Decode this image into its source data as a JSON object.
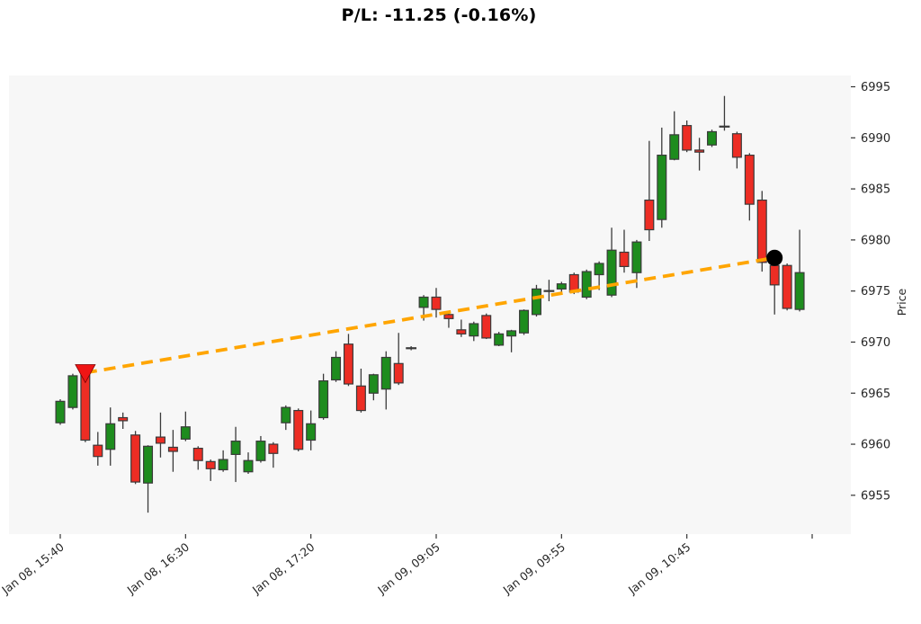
{
  "title": "P/L: -11.25 (-0.16%)",
  "chart_data": {
    "type": "candlestick",
    "title": "P/L: -11.25 (-0.16%)",
    "ylabel": "Price",
    "xlabel": "",
    "grid": false,
    "ylim": [
      6951.2,
      6996.1
    ],
    "y_ticks": [
      6955,
      6960,
      6965,
      6970,
      6975,
      6980,
      6985,
      6990,
      6995
    ],
    "x_ticks": [
      {
        "index": 0,
        "label": "Jan 08, 15:40"
      },
      {
        "index": 10,
        "label": "Jan 08, 16:30"
      },
      {
        "index": 20,
        "label": "Jan 08, 17:20"
      },
      {
        "index": 30,
        "label": "Jan 09, 09:05"
      },
      {
        "index": 40,
        "label": "Jan 09, 09:55"
      },
      {
        "index": 50,
        "label": "Jan 09, 10:45"
      },
      {
        "index": 60,
        "label": ""
      }
    ],
    "candles_format": [
      "open",
      "high",
      "low",
      "close"
    ],
    "candles": [
      [
        6962.1,
        6964.4,
        6961.9,
        6964.2
      ],
      [
        6963.6,
        6966.9,
        6963.4,
        6966.7
      ],
      [
        6967.0,
        6967.2,
        6960.2,
        6960.4
      ],
      [
        6959.9,
        6961.2,
        6957.9,
        6958.8
      ],
      [
        6959.5,
        6963.6,
        6957.9,
        6962.0
      ],
      [
        6962.6,
        6963.1,
        6961.5,
        6962.3
      ],
      [
        6960.9,
        6961.3,
        6956.1,
        6956.3
      ],
      [
        6956.2,
        6959.9,
        6953.3,
        6959.8
      ],
      [
        6960.7,
        6963.1,
        6958.7,
        6960.1
      ],
      [
        6959.7,
        6961.4,
        6957.3,
        6959.3
      ],
      [
        6960.5,
        6963.2,
        6960.3,
        6961.7
      ],
      [
        6959.6,
        6959.8,
        6957.5,
        6958.4
      ],
      [
        6958.3,
        6958.5,
        6956.4,
        6957.6
      ],
      [
        6957.5,
        6959.4,
        6957.3,
        6958.5
      ],
      [
        6959.0,
        6961.7,
        6956.3,
        6960.3
      ],
      [
        6957.3,
        6959.2,
        6957.1,
        6958.4
      ],
      [
        6958.4,
        6960.8,
        6958.2,
        6960.3
      ],
      [
        6960.0,
        6960.2,
        6957.7,
        6959.1
      ],
      [
        6962.1,
        6963.8,
        6961.4,
        6963.6
      ],
      [
        6963.3,
        6963.5,
        6959.3,
        6959.5
      ],
      [
        6960.4,
        6963.3,
        6959.4,
        6962.0
      ],
      [
        6962.6,
        6966.9,
        6962.4,
        6966.2
      ],
      [
        6966.3,
        6969.1,
        6966.1,
        6968.5
      ],
      [
        6969.8,
        6970.8,
        6965.7,
        6965.9
      ],
      [
        6965.7,
        6967.4,
        6963.1,
        6963.3
      ],
      [
        6965.0,
        6966.9,
        6964.3,
        6966.8
      ],
      [
        6965.4,
        6969.1,
        6963.4,
        6968.5
      ],
      [
        6967.9,
        6970.9,
        6965.8,
        6966.0
      ],
      [
        6969.4,
        6969.6,
        6969.2,
        6969.4
      ],
      [
        6973.4,
        6974.6,
        6972.1,
        6974.4
      ],
      [
        6974.4,
        6975.3,
        6972.4,
        6973.2
      ],
      [
        6972.7,
        6972.9,
        6971.4,
        6972.3
      ],
      [
        6971.2,
        6972.2,
        6970.5,
        6970.8
      ],
      [
        6970.6,
        6972.0,
        6970.1,
        6971.8
      ],
      [
        6972.6,
        6972.8,
        6970.3,
        6970.4
      ],
      [
        6969.7,
        6971.0,
        6969.6,
        6970.8
      ],
      [
        6970.6,
        6971.2,
        6969.0,
        6971.1
      ],
      [
        6970.9,
        6973.2,
        6970.7,
        6973.1
      ],
      [
        6972.7,
        6975.6,
        6972.5,
        6975.2
      ],
      [
        6975.0,
        6976.1,
        6974.0,
        6975.0
      ],
      [
        6975.2,
        6975.9,
        6974.7,
        6975.7
      ],
      [
        6976.6,
        6976.8,
        6974.7,
        6974.9
      ],
      [
        6974.4,
        6977.1,
        6974.2,
        6976.9
      ],
      [
        6976.6,
        6977.9,
        6975.1,
        6977.7
      ],
      [
        6974.6,
        6981.2,
        6974.4,
        6979.0
      ],
      [
        6978.8,
        6981.0,
        6976.8,
        6977.4
      ],
      [
        6976.8,
        6980.0,
        6975.3,
        6979.8
      ],
      [
        6983.9,
        6989.7,
        6979.9,
        6981.0
      ],
      [
        6982.0,
        6991.0,
        6981.2,
        6988.3
      ],
      [
        6987.9,
        6992.6,
        6987.8,
        6990.3
      ],
      [
        6991.2,
        6991.7,
        6988.6,
        6988.8
      ],
      [
        6988.8,
        6990.0,
        6986.8,
        6988.6
      ],
      [
        6989.3,
        6990.8,
        6989.1,
        6990.6
      ],
      [
        6991.1,
        6994.1,
        6990.7,
        6991.1
      ],
      [
        6990.4,
        6990.6,
        6987.0,
        6988.1
      ],
      [
        6988.3,
        6988.5,
        6981.9,
        6983.5
      ],
      [
        6983.9,
        6984.8,
        6976.9,
        6977.8
      ],
      [
        6977.5,
        6978.3,
        6972.7,
        6975.6
      ],
      [
        6977.5,
        6977.7,
        6973.1,
        6973.3
      ],
      [
        6973.2,
        6981.0,
        6973.0,
        6976.8
      ]
    ],
    "trade": {
      "entry": {
        "index": 2,
        "price": 6967.0,
        "marker": "triangle-down",
        "color": "#f01515"
      },
      "exit": {
        "index": 57,
        "price": 6978.25,
        "marker": "circle",
        "color": "#000000"
      },
      "connector": {
        "style": "dashed",
        "color": "#ffa500"
      }
    },
    "colors": {
      "up": "#1e8c1e",
      "down": "#ed2d24",
      "wick": "#3a3a3a",
      "doji": "#3a3a3a",
      "plot_bg": "#f7f7f7",
      "tick_text": "#262626",
      "tick_mark": "#333333"
    },
    "legend": null
  }
}
